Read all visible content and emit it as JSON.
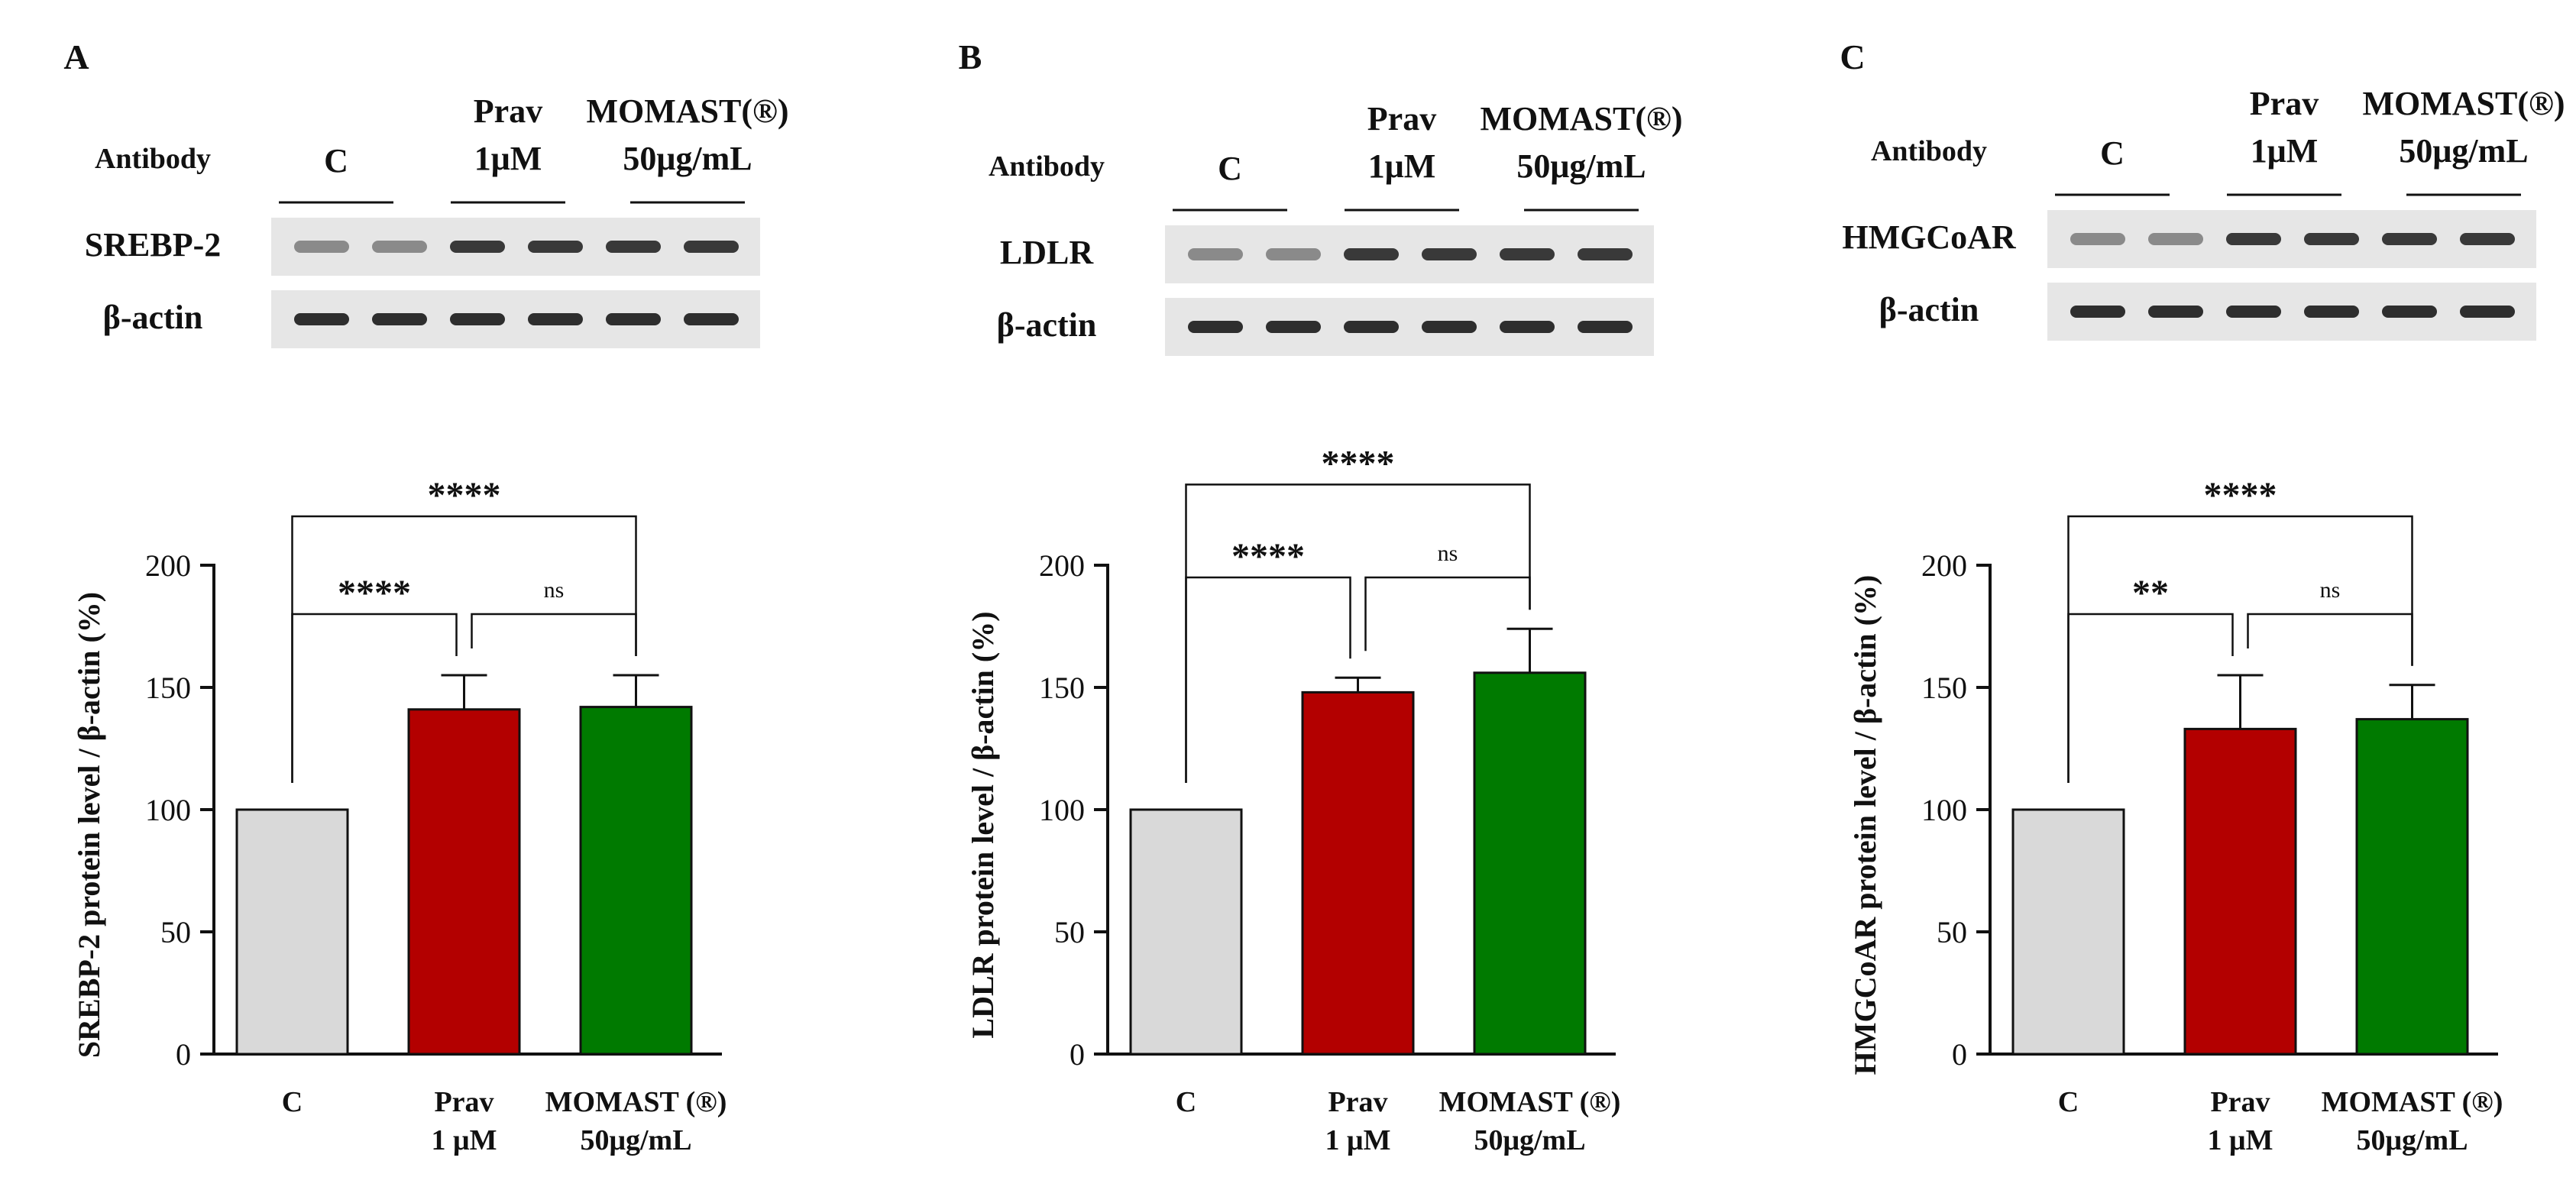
{
  "panels": [
    {
      "letter": "A",
      "blot": {
        "antibody_label": "Antibody",
        "groups": [
          {
            "lines": [
              "C"
            ]
          },
          {
            "lines": [
              "Prav",
              "1μM"
            ]
          },
          {
            "lines": [
              "MOMAST(®)",
              "50μg/mL"
            ]
          }
        ],
        "rows": [
          "SREBP-2",
          "β-actin"
        ]
      }
    },
    {
      "letter": "B",
      "blot": {
        "antibody_label": "Antibody",
        "groups": [
          {
            "lines": [
              "C"
            ]
          },
          {
            "lines": [
              "Prav",
              "1μM"
            ]
          },
          {
            "lines": [
              "MOMAST(®)",
              "50μg/mL"
            ]
          }
        ],
        "rows": [
          "LDLR",
          "β-actin"
        ]
      }
    },
    {
      "letter": "C",
      "blot": {
        "antibody_label": "Antibody",
        "groups": [
          {
            "lines": [
              "C"
            ]
          },
          {
            "lines": [
              "Prav",
              "1μM"
            ]
          },
          {
            "lines": [
              "MOMAST(®)",
              "50μg/mL"
            ]
          }
        ],
        "rows": [
          "HMGCoAR",
          "β-actin"
        ]
      }
    }
  ],
  "colors": {
    "control": "#d9d9d9",
    "prav": "#b30000",
    "momast": "#007a00",
    "axis": "#111111"
  },
  "chart_data": [
    {
      "type": "bar",
      "ylabel": "SREBP-2 protein level / β-actin (%)",
      "ylim": [
        0,
        200
      ],
      "yticks": [
        0,
        50,
        100,
        150,
        200
      ],
      "categories": [
        {
          "lines": [
            "C"
          ]
        },
        {
          "lines": [
            "Prav",
            "1 μM"
          ]
        },
        {
          "lines": [
            "MOMAST (®)",
            "50μg/mL"
          ]
        }
      ],
      "values": [
        100,
        141,
        142
      ],
      "errors": [
        0,
        14,
        13
      ],
      "significance": [
        {
          "from": 0,
          "to": 2,
          "label": "****",
          "level": 220
        },
        {
          "from": 0,
          "to": 1,
          "label": "****",
          "level": 180
        },
        {
          "from": 1,
          "to": 2,
          "label": "ns",
          "level": 180
        }
      ]
    },
    {
      "type": "bar",
      "ylabel": "LDLR protein level / β-actin (%)",
      "ylim": [
        0,
        200
      ],
      "yticks": [
        0,
        50,
        100,
        150,
        200
      ],
      "categories": [
        {
          "lines": [
            "C"
          ]
        },
        {
          "lines": [
            "Prav",
            "1 μM"
          ]
        },
        {
          "lines": [
            "MOMAST (®)",
            "50μg/mL"
          ]
        }
      ],
      "values": [
        100,
        148,
        156
      ],
      "errors": [
        0,
        6,
        18
      ],
      "significance": [
        {
          "from": 0,
          "to": 2,
          "label": "****",
          "level": 233
        },
        {
          "from": 0,
          "to": 1,
          "label": "****",
          "level": 195
        },
        {
          "from": 1,
          "to": 2,
          "label": "ns",
          "level": 195
        }
      ]
    },
    {
      "type": "bar",
      "ylabel": "HMGCoAR protein level / β-actin (%)",
      "ylim": [
        0,
        200
      ],
      "yticks": [
        0,
        50,
        100,
        150,
        200
      ],
      "categories": [
        {
          "lines": [
            "C"
          ]
        },
        {
          "lines": [
            "Prav",
            "1 μM"
          ]
        },
        {
          "lines": [
            "MOMAST (®)",
            "50μg/mL"
          ]
        }
      ],
      "values": [
        100,
        133,
        137
      ],
      "errors": [
        0,
        22,
        14
      ],
      "significance": [
        {
          "from": 0,
          "to": 2,
          "label": "****",
          "level": 220
        },
        {
          "from": 0,
          "to": 1,
          "label": "**",
          "level": 180
        },
        {
          "from": 1,
          "to": 2,
          "label": "ns",
          "level": 180
        }
      ]
    }
  ]
}
